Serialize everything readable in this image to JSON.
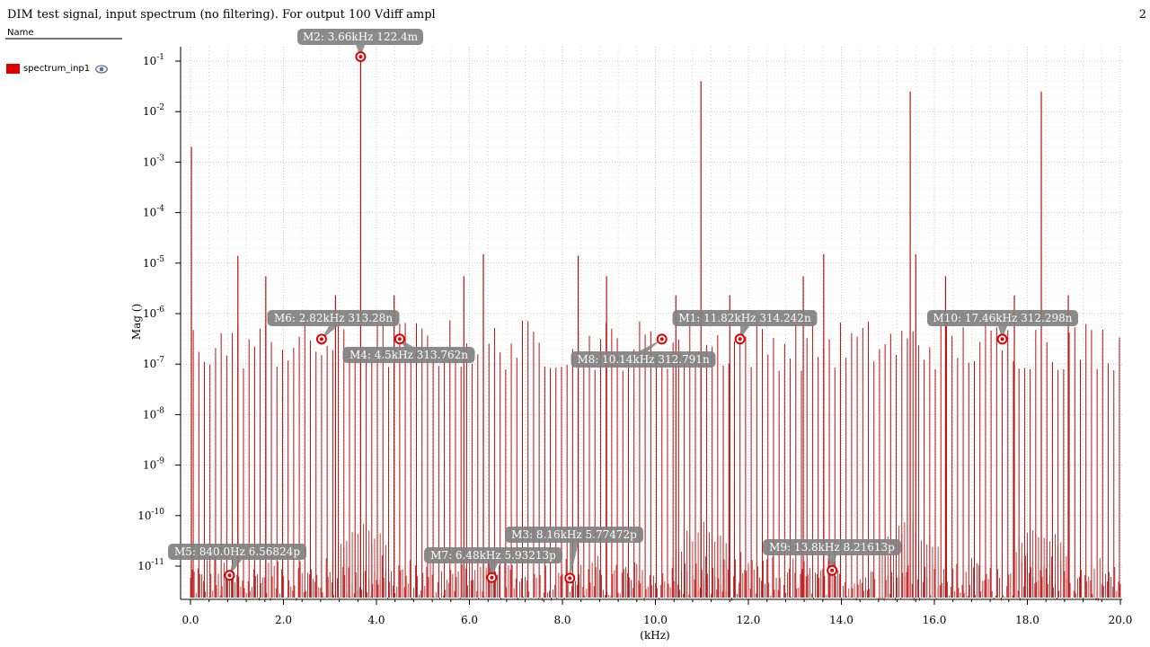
{
  "title": "DIM test signal, input spectrum (no filtering). For output 100 Vdiff ampl",
  "page_number": "2",
  "legend": {
    "header": "Name",
    "items": [
      {
        "name": "spectrum_inp1",
        "color": "#dd0000"
      }
    ]
  },
  "colors": {
    "trace": "#b81010",
    "marker_box": "#808080",
    "marker_point": "#e00000",
    "grid": "#cccccc"
  },
  "chart_data": {
    "type": "bar",
    "xlabel": "(kHz)",
    "ylabel": "Mag ()",
    "xlim": [
      0.0,
      20.0
    ],
    "ylim_log10": [
      -11.7,
      -0.7
    ],
    "y_scale": "log",
    "grid": true,
    "x_ticks": [
      "0.0",
      "2.0",
      "4.0",
      "6.0",
      "8.0",
      "10.0",
      "12.0",
      "14.0",
      "16.0",
      "18.0",
      "20.0"
    ],
    "y_ticks": [
      {
        "base": "10",
        "exp": "-1"
      },
      {
        "base": "10",
        "exp": "-2"
      },
      {
        "base": "10",
        "exp": "-3"
      },
      {
        "base": "10",
        "exp": "-4"
      },
      {
        "base": "10",
        "exp": "-5"
      },
      {
        "base": "10",
        "exp": "-6"
      },
      {
        "base": "10",
        "exp": "-7"
      },
      {
        "base": "10",
        "exp": "-8"
      },
      {
        "base": "10",
        "exp": "-9"
      },
      {
        "base": "10",
        "exp": "-10"
      },
      {
        "base": "10",
        "exp": "-11"
      }
    ],
    "series": [
      {
        "name": "spectrum_inp1",
        "peaks": [
          {
            "x": 0.02,
            "y": 0.002
          },
          {
            "x": 3.66,
            "y": 0.12
          },
          {
            "x": 10.98,
            "y": 0.04
          },
          {
            "x": 15.48,
            "y": 0.025
          },
          {
            "x": 18.3,
            "y": 0.025
          },
          {
            "x": 1.02,
            "y": 1.4e-05
          },
          {
            "x": 8.34,
            "y": 1.4e-05
          },
          {
            "x": 6.3,
            "y": 1.5e-05
          },
          {
            "x": 13.62,
            "y": 1.5e-05
          },
          {
            "x": 15.6,
            "y": 1.5e-05
          },
          {
            "x": 1.62,
            "y": 5.5e-06
          },
          {
            "x": 5.88,
            "y": 5.5e-06
          },
          {
            "x": 8.95,
            "y": 5.5e-06
          },
          {
            "x": 13.18,
            "y": 5.5e-06
          },
          {
            "x": 16.24,
            "y": 5.5e-06
          },
          {
            "x": 3.12,
            "y": 2.3e-06
          },
          {
            "x": 4.38,
            "y": 2.3e-06
          },
          {
            "x": 10.44,
            "y": 2.3e-06
          },
          {
            "x": 11.6,
            "y": 2.3e-06
          },
          {
            "x": 17.72,
            "y": 2.3e-06
          },
          {
            "x": 18.88,
            "y": 2.3e-06
          }
        ],
        "noise_floor": {
          "min": 2e-12,
          "max": 2e-11
        },
        "harmonic_spacing_khz": 0.12,
        "harmonic_level": {
          "min": 2e-08,
          "max": 8e-07
        }
      }
    ],
    "markers": [
      {
        "id": "M1",
        "label": "M1: 11.82kHz 314.242n",
        "x": 11.82,
        "y": 3.14242e-07
      },
      {
        "id": "M2",
        "label": "M2: 3.66kHz 122.4m",
        "x": 3.66,
        "y": 0.1224
      },
      {
        "id": "M3",
        "label": "M3: 8.16kHz 5.77472p",
        "x": 8.16,
        "y": 5.77472e-12
      },
      {
        "id": "M4",
        "label": "M4: 4.5kHz 313.762n",
        "x": 4.5,
        "y": 3.13762e-07
      },
      {
        "id": "M5",
        "label": "M5: 840.0Hz 6.56824p",
        "x": 0.84,
        "y": 6.56824e-12
      },
      {
        "id": "M6",
        "label": "M6: 2.82kHz 313.28n",
        "x": 2.82,
        "y": 3.1328e-07
      },
      {
        "id": "M7",
        "label": "M7: 6.48kHz 5.93213p",
        "x": 6.48,
        "y": 5.93213e-12
      },
      {
        "id": "M8",
        "label": "M8: 10.14kHz 312.791n",
        "x": 10.14,
        "y": 3.12791e-07
      },
      {
        "id": "M9",
        "label": "M9: 13.8kHz 8.21613p",
        "x": 13.8,
        "y": 8.21613e-12
      },
      {
        "id": "M10",
        "label": "M10: 17.46kHz 312.298n",
        "x": 17.46,
        "y": 3.12298e-07
      }
    ]
  }
}
